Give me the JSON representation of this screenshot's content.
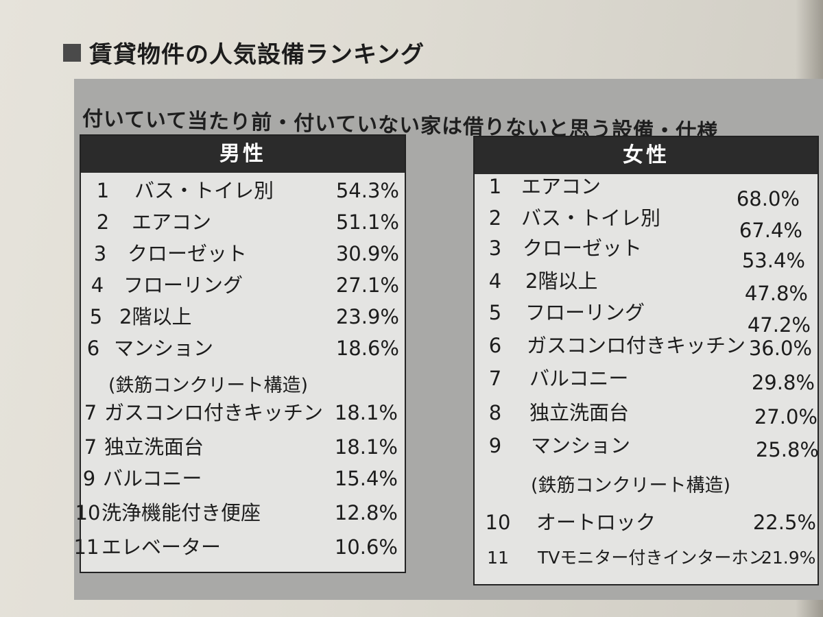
{
  "heading": "賃貸物件の人気設備ランキング",
  "subtitle": "付いていて当たり前・付いていない家は借りないと思う設備・仕様",
  "male": {
    "title": "男性",
    "items": [
      {
        "rank": "1",
        "name": "バス・トイレ別",
        "pct": "54.3%"
      },
      {
        "rank": "2",
        "name": "エアコン",
        "pct": "51.1%"
      },
      {
        "rank": "3",
        "name": "クローゼット",
        "pct": "30.9%"
      },
      {
        "rank": "4",
        "name": "フローリング",
        "pct": "27.1%"
      },
      {
        "rank": "5",
        "name": "2階以上",
        "pct": "23.9%"
      },
      {
        "rank": "6",
        "name": "マンション",
        "pct": "18.6%",
        "note": "(鉄筋コンクリート構造)"
      },
      {
        "rank": "7",
        "name": "ガスコンロ付きキッチン",
        "pct": "18.1%"
      },
      {
        "rank": "7",
        "name": "独立洗面台",
        "pct": "18.1%"
      },
      {
        "rank": "9",
        "name": "バルコニー",
        "pct": "15.4%"
      },
      {
        "rank": "10",
        "name": "洗浄機能付き便座",
        "pct": "12.8%"
      },
      {
        "rank": "11",
        "name": "エレベーター",
        "pct": "10.6%"
      }
    ]
  },
  "female": {
    "title": "女性",
    "items": [
      {
        "rank": "1",
        "name": "エアコン",
        "pct": "68.0%"
      },
      {
        "rank": "2",
        "name": "バス・トイレ別",
        "pct": "67.4%"
      },
      {
        "rank": "3",
        "name": "クローゼット",
        "pct": "53.4%"
      },
      {
        "rank": "4",
        "name": "2階以上",
        "pct": "47.8%"
      },
      {
        "rank": "5",
        "name": "フローリング",
        "pct": "47.2%"
      },
      {
        "rank": "6",
        "name": "ガスコンロ付きキッチン",
        "pct": "36.0%"
      },
      {
        "rank": "7",
        "name": "バルコニー",
        "pct": "29.8%"
      },
      {
        "rank": "8",
        "name": "独立洗面台",
        "pct": "27.0%"
      },
      {
        "rank": "9",
        "name": "マンション",
        "pct": "25.8%",
        "note": "(鉄筋コンクリート構造)"
      },
      {
        "rank": "10",
        "name": "オートロック",
        "pct": "22.5%"
      },
      {
        "rank": "11",
        "name": "TVモニター付きインターホン",
        "pct": "21.9%"
      }
    ]
  }
}
